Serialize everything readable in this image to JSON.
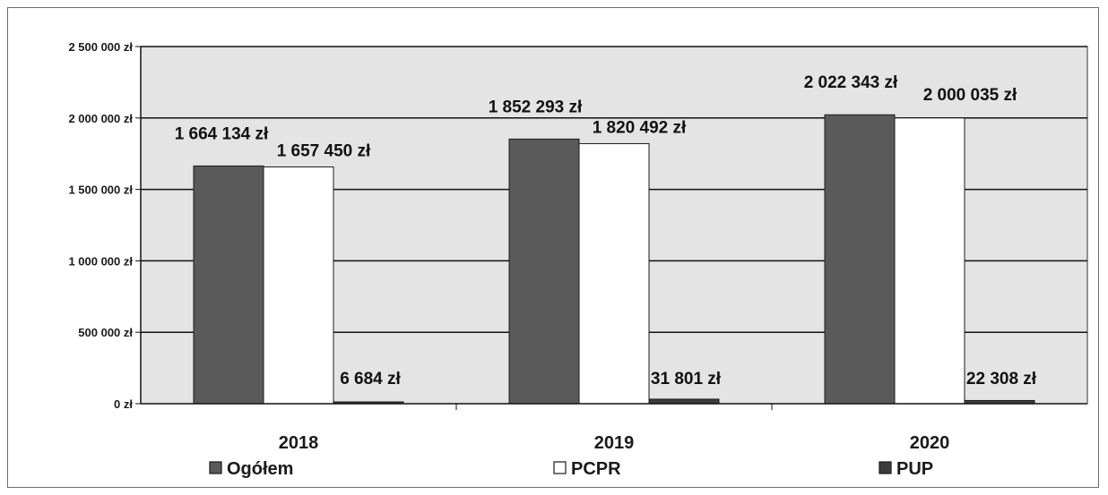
{
  "chart_data": {
    "type": "bar",
    "categories": [
      "2018",
      "2019",
      "2020"
    ],
    "series": [
      {
        "name": "Ogółem",
        "color": "#5a5a5a",
        "values": [
          1664134,
          1852293,
          2022343
        ],
        "labels": [
          "1 664 134 zł",
          "1 852 293 zł",
          "2 022 343 zł"
        ]
      },
      {
        "name": "PCPR",
        "color": "#ffffff",
        "values": [
          1657450,
          1820492,
          2000035
        ],
        "labels": [
          "1 657 450 zł",
          "1 820 492 zł",
          "2 000 035 zł"
        ]
      },
      {
        "name": "PUP",
        "color": "#3c3c3c",
        "values": [
          6684,
          31801,
          22308
        ],
        "labels": [
          "6 684 zł",
          "31 801 zł",
          "22 308 zł"
        ]
      }
    ],
    "ylim": [
      0,
      2500000
    ],
    "yticks": [
      {
        "value": 0,
        "label": "0 zł"
      },
      {
        "value": 500000,
        "label": "500 000 zł"
      },
      {
        "value": 1000000,
        "label": "1 000 000 zł"
      },
      {
        "value": 1500000,
        "label": "1 500 000 zł"
      },
      {
        "value": 2000000,
        "label": "2 000 000 zł"
      },
      {
        "value": 2500000,
        "label": "2 500 000 zł"
      }
    ],
    "grid": true,
    "legend_position": "bottom",
    "plot_background": "#e4e4e4"
  }
}
